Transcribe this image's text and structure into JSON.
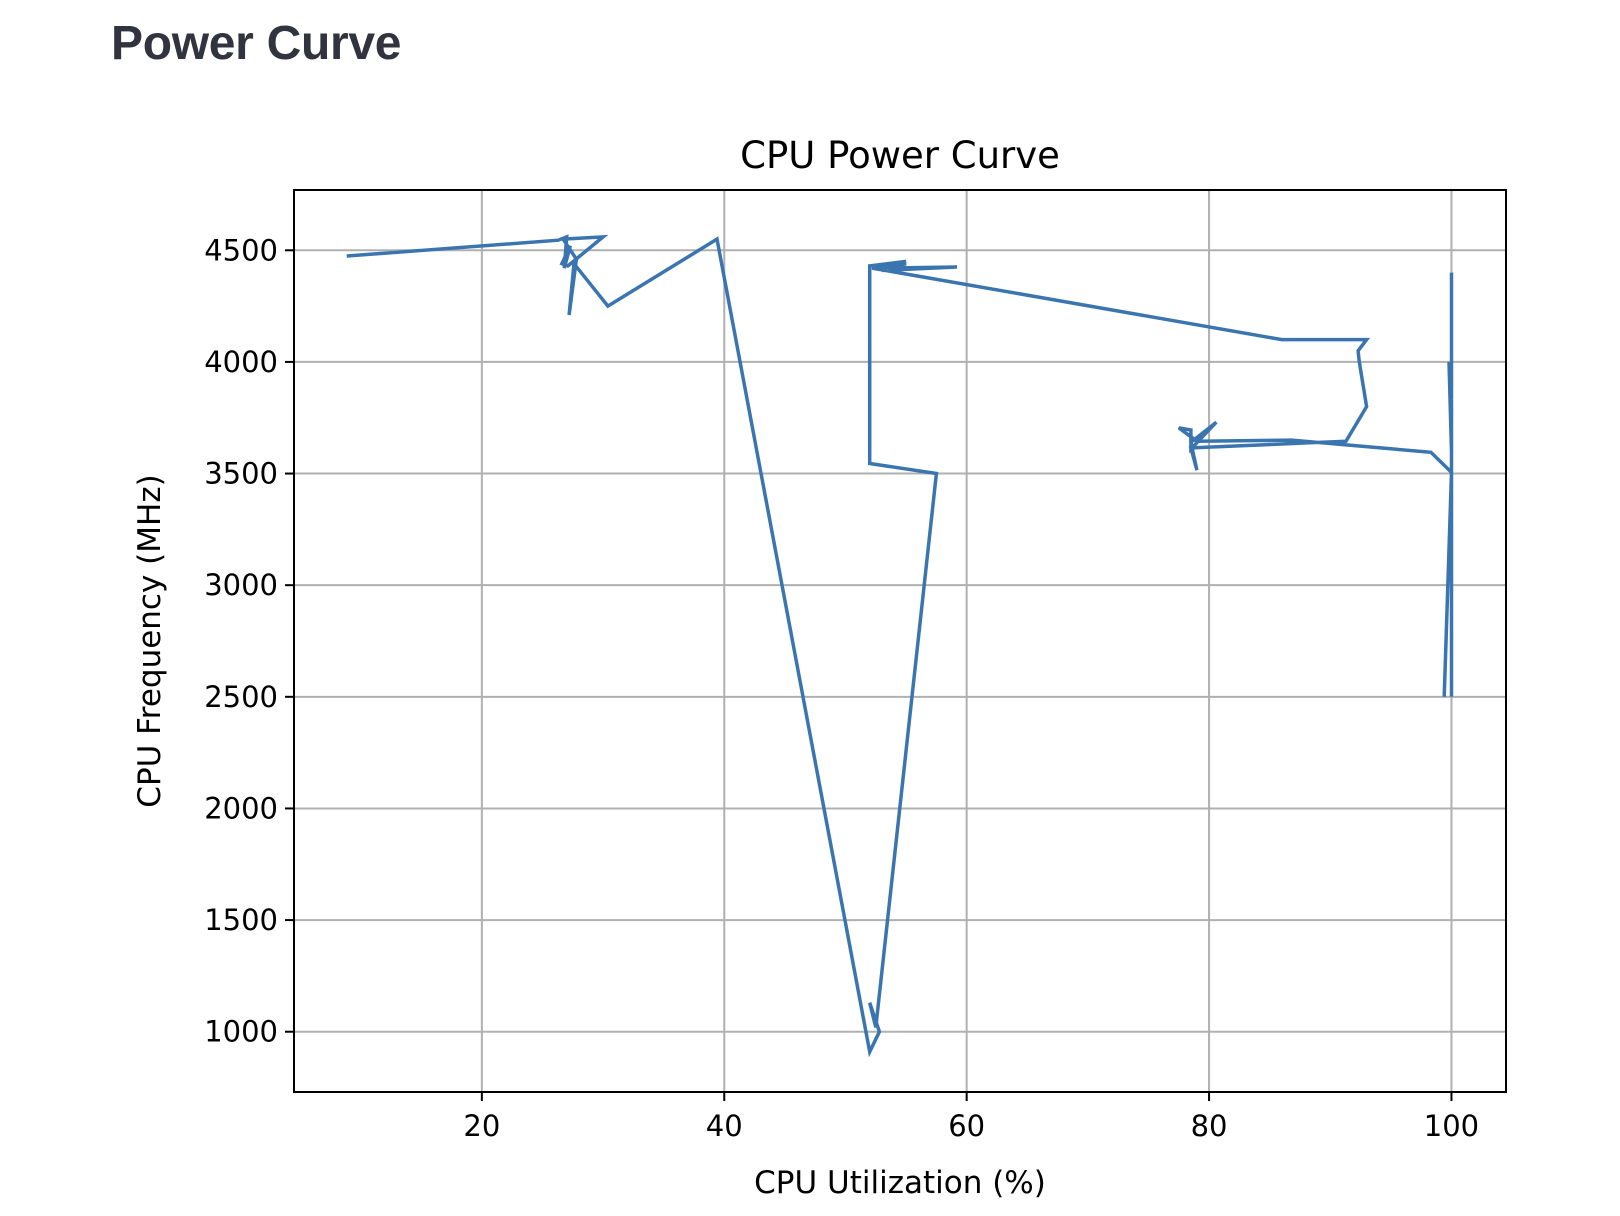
{
  "page": {
    "heading": "Power Curve"
  },
  "chart_data": {
    "type": "line",
    "title": "CPU Power Curve",
    "xlabel": "CPU Utilization (%)",
    "ylabel": "CPU Frequency (MHz)",
    "xlim": [
      4.5,
      104.5
    ],
    "ylim": [
      730,
      4770
    ],
    "xticks": [
      20,
      40,
      60,
      80,
      100
    ],
    "yticks": [
      1000,
      1500,
      2000,
      2500,
      3000,
      3500,
      4000,
      4500
    ],
    "grid": true,
    "line_color": "#3a75b0",
    "series": [
      {
        "name": "",
        "x": [
          9.0,
          26.3,
          27.0,
          26.8,
          27.3,
          26.6,
          27.1,
          30.0,
          26.7,
          27.8,
          27.2,
          27.6,
          30.4,
          39.4,
          52.0,
          52.8,
          52.0,
          52.5,
          57.5,
          52.0,
          52.0,
          52.0,
          55.0,
          53.0,
          59.2,
          53.0,
          55.0,
          52.2,
          86.0,
          93.0,
          92.3,
          92.4,
          93.0,
          91.3,
          78.5,
          79.0,
          78.5,
          80.6,
          78.5,
          78.5,
          77.5,
          79.0,
          86.8,
          98.3,
          100.0,
          99.4,
          100.0,
          100.0,
          100.0,
          100.0,
          99.8,
          100.0,
          100.0,
          100.0,
          100.0
        ],
        "y": [
          4475,
          4545,
          4560,
          4420,
          4520,
          4440,
          4430,
          4560,
          4550,
          4460,
          4210,
          4440,
          4250,
          4550,
          910,
          1000,
          1130,
          1020,
          3500,
          3545,
          4430,
          4430,
          4450,
          4420,
          4425,
          4410,
          4440,
          4420,
          4100,
          4100,
          4050,
          4000,
          3800,
          3645,
          3615,
          3515,
          3640,
          3730,
          3610,
          3695,
          3705,
          3645,
          3650,
          3595,
          3505,
          2500,
          3500,
          2500,
          3700,
          3600,
          4000,
          3830,
          4400,
          4370,
          3520
        ]
      }
    ]
  }
}
